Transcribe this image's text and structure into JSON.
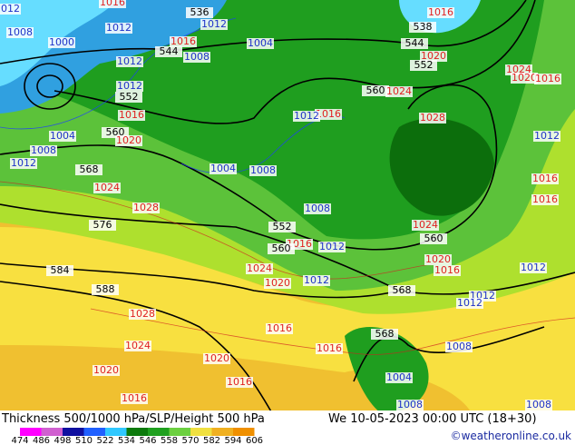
{
  "header": {
    "title": "Thickness 500/1000 hPa/SLP/Height 500 hPa",
    "datetime": "We 10-05-2023 00:00 UTC (18+30)",
    "credit": "©weatheronline.co.uk"
  },
  "legend": {
    "labels": [
      "474",
      "486",
      "498",
      "510",
      "522",
      "534",
      "546",
      "558",
      "570",
      "582",
      "594",
      "606"
    ]
  },
  "map_labels": [
    "1012",
    "1016",
    "536",
    "1012",
    "538",
    "1016",
    "1008",
    "1000",
    "1012",
    "1016",
    "544",
    "1004",
    "1008",
    "544",
    "1020",
    "552",
    "1012",
    "1024",
    "1020",
    "1016",
    "1012",
    "552",
    "560",
    "1024",
    "1016",
    "1012",
    "1028",
    "1016",
    "560",
    "1004",
    "1020",
    "1012",
    "1008",
    "1012",
    "568",
    "1004",
    "1008",
    "1016",
    "1024",
    "1016",
    "1028",
    "1008",
    "576",
    "552",
    "1024",
    "560",
    "1016",
    "1012",
    "560",
    "584",
    "1024",
    "1020",
    "1016",
    "1012",
    "1020",
    "1012",
    "588",
    "568",
    "1012",
    "1012",
    "1028",
    "1016",
    "568",
    "1024",
    "1016",
    "1008",
    "1020",
    "1020",
    "1004",
    "1016",
    "1016",
    "1008",
    "1008"
  ]
}
